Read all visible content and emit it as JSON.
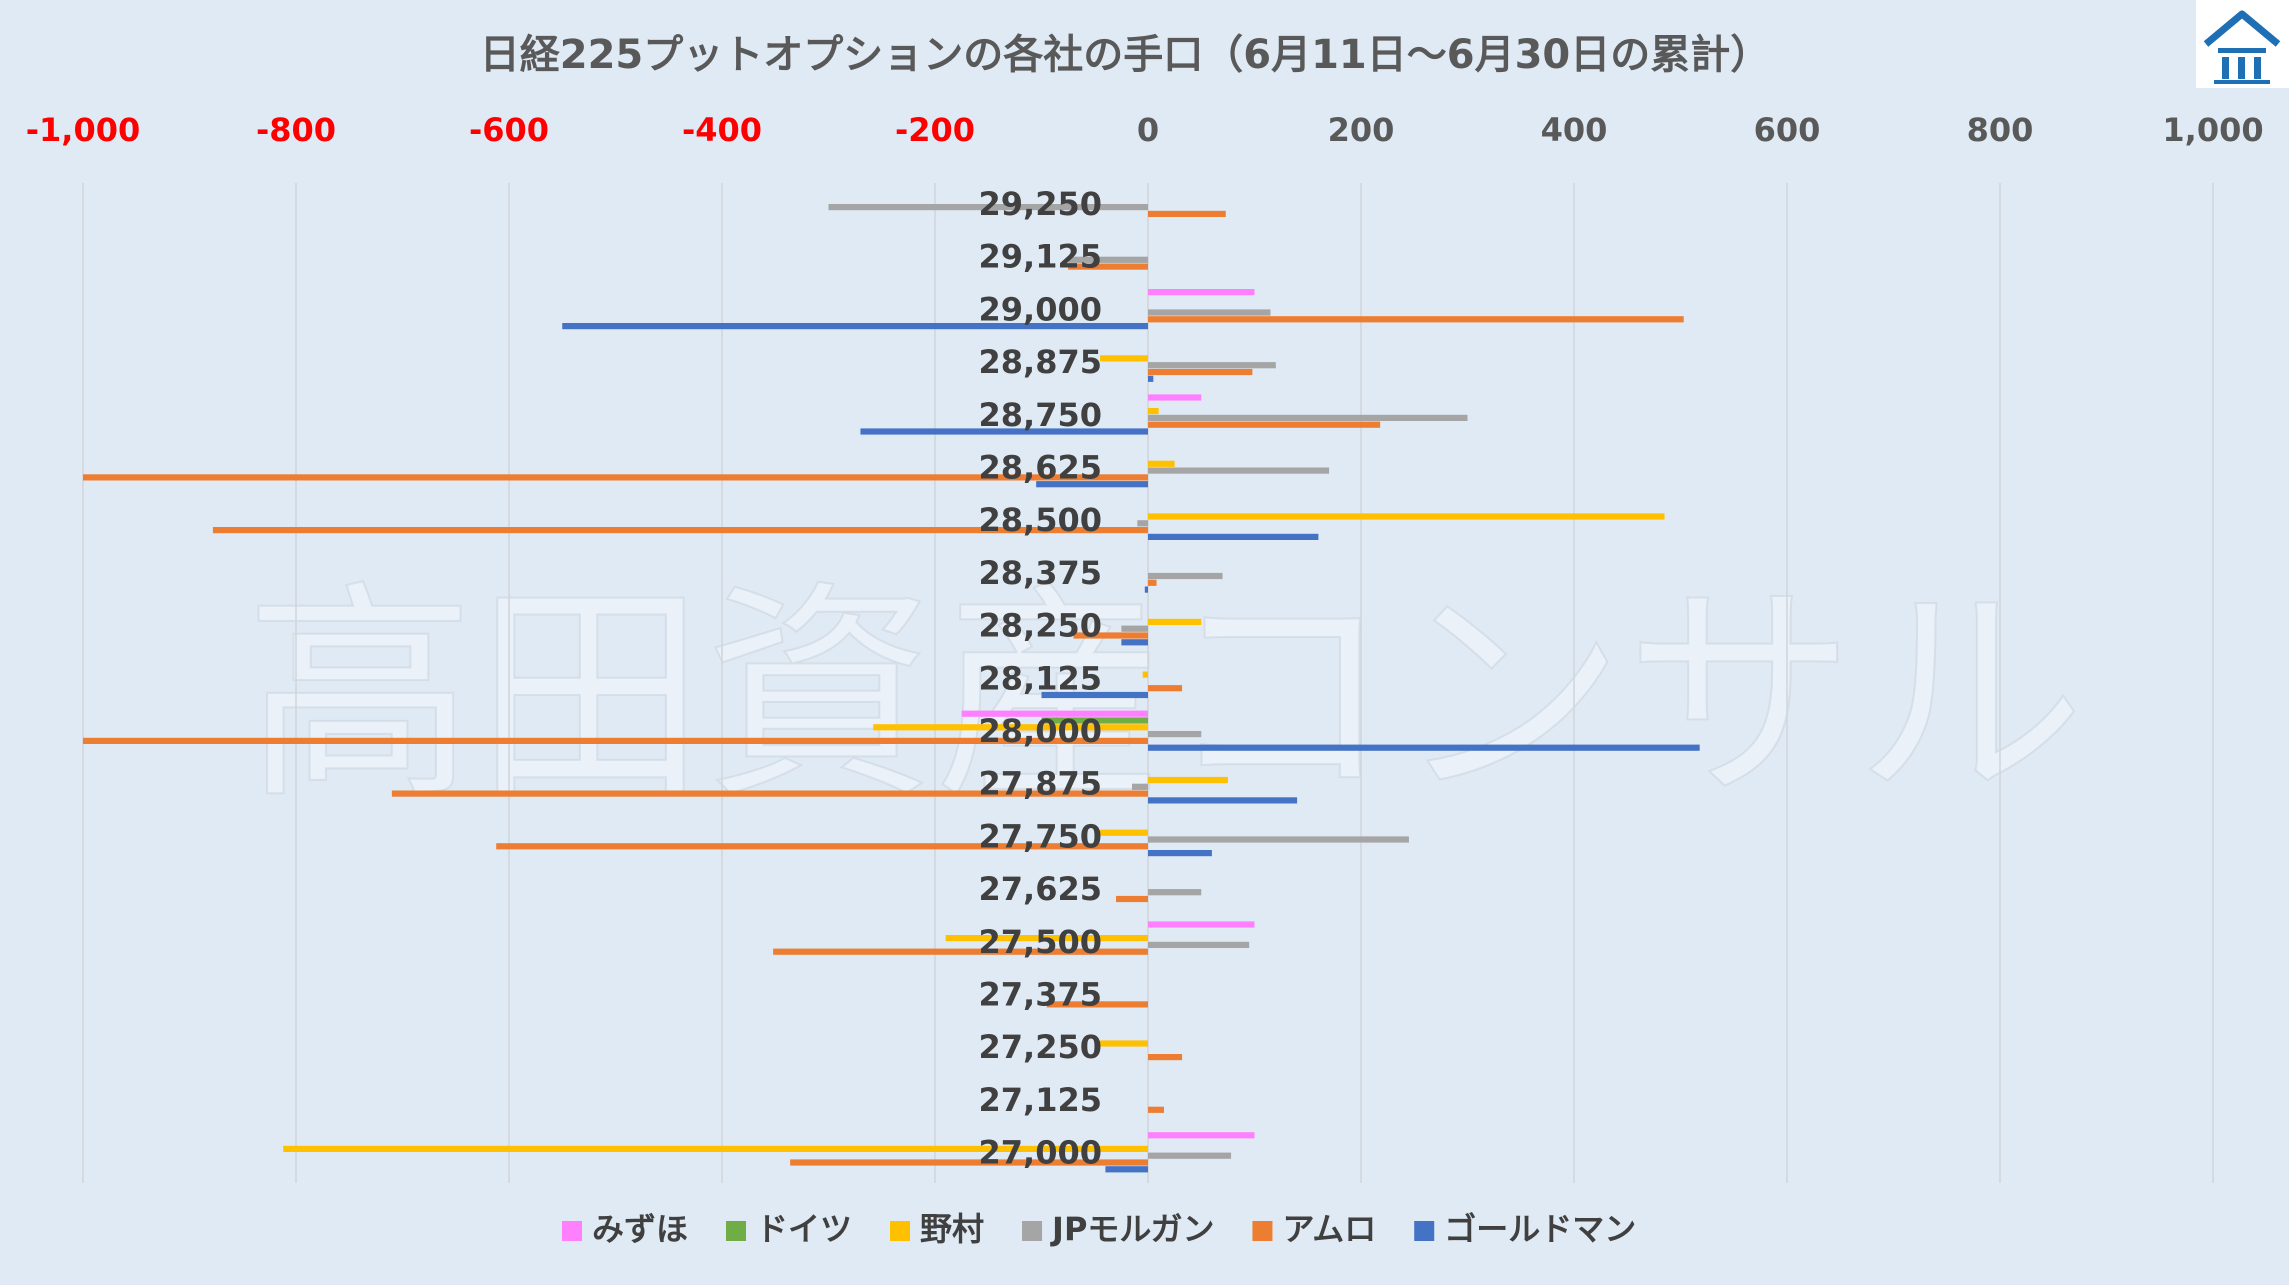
{
  "watermark": "高田資産コンサル",
  "chart_data": {
    "type": "bar",
    "orientation": "horizontal",
    "title": "日経225プットオプションの各社の手口（6月11日～6月30日の累計）",
    "xlim": [
      -1000,
      1000
    ],
    "x_ticks": [
      "-1,000",
      "-800",
      "-600",
      "-400",
      "-200",
      "0",
      "200",
      "400",
      "600",
      "800",
      "1,000"
    ],
    "x_tick_values": [
      -1000,
      -800,
      -600,
      -400,
      -200,
      0,
      200,
      400,
      600,
      800,
      1000
    ],
    "negative_tick_color": "#ff0000",
    "positive_tick_color": "#595959",
    "grid": true,
    "legend_position": "bottom",
    "categories": [
      "29,250",
      "29,125",
      "29,000",
      "28,875",
      "28,750",
      "28,625",
      "28,500",
      "28,375",
      "28,250",
      "28,125",
      "28,000",
      "27,875",
      "27,750",
      "27,625",
      "27,500",
      "27,375",
      "27,250",
      "27,125",
      "27,000"
    ],
    "series": [
      {
        "name": "みずほ",
        "color": "#ff80ff",
        "values": [
          0,
          0,
          100,
          0,
          50,
          0,
          0,
          0,
          0,
          0,
          -175,
          0,
          0,
          0,
          100,
          0,
          0,
          0,
          100
        ]
      },
      {
        "name": "ドイツ",
        "color": "#70ad47",
        "values": [
          0,
          0,
          0,
          0,
          0,
          0,
          0,
          0,
          0,
          0,
          -100,
          0,
          0,
          0,
          0,
          0,
          0,
          0,
          0
        ]
      },
      {
        "name": "野村",
        "color": "#ffc000",
        "values": [
          0,
          0,
          0,
          -45,
          10,
          25,
          485,
          0,
          50,
          -5,
          -258,
          75,
          -45,
          0,
          -190,
          0,
          -45,
          0,
          -812
        ]
      },
      {
        "name": "JPモルガン",
        "color": "#a5a5a5",
        "values": [
          -300,
          -75,
          115,
          120,
          300,
          170,
          -10,
          70,
          -25,
          0,
          50,
          -15,
          245,
          50,
          95,
          0,
          0,
          0,
          78
        ]
      },
      {
        "name": "アムロ",
        "color": "#ed7d31",
        "values": [
          73,
          -75,
          503,
          98,
          218,
          -1000,
          -878,
          8,
          -70,
          32,
          -1000,
          -710,
          -612,
          -30,
          -352,
          -95,
          32,
          15,
          -336
        ]
      },
      {
        "name": "ゴールドマン",
        "color": "#4472c4",
        "values": [
          0,
          0,
          -550,
          5,
          -270,
          -105,
          160,
          -3,
          -25,
          -100,
          518,
          140,
          60,
          0,
          0,
          0,
          0,
          0,
          -40
        ]
      }
    ]
  }
}
